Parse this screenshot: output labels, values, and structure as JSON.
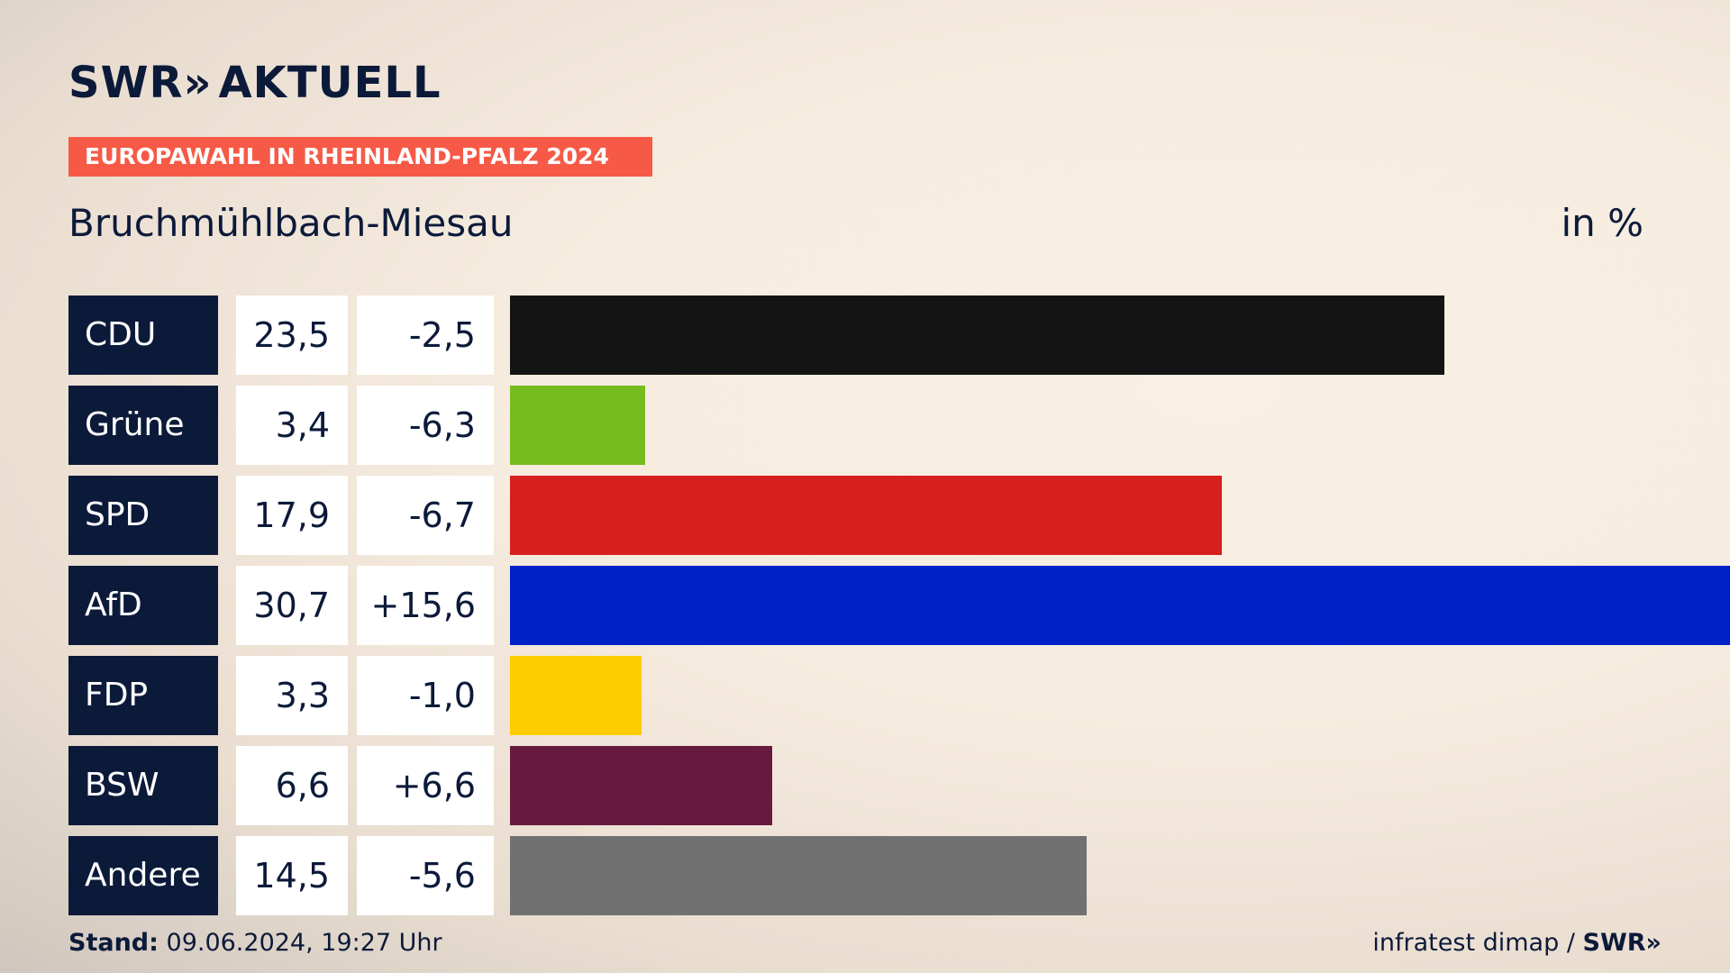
{
  "brand": {
    "logo_text": "SWR",
    "logo_chevrons": "»",
    "logo_suffix": "AKTUELL",
    "color_dark": "#0c1a3a",
    "color_accent": "#f65a47"
  },
  "banner": {
    "text": "EUROPAWAHL IN RHEINLAND-PFALZ 2024"
  },
  "region": "Bruchmühlbach-Miesau",
  "unit_label": "in %",
  "chart_data": {
    "type": "bar",
    "orientation": "horizontal",
    "categories": [
      "CDU",
      "Grüne",
      "SPD",
      "AfD",
      "FDP",
      "BSW",
      "Andere"
    ],
    "values": [
      23.5,
      3.4,
      17.9,
      30.7,
      3.3,
      6.6,
      14.5
    ],
    "value_labels": [
      "23,5",
      "3,4",
      "17,9",
      "30,7",
      "3,3",
      "6,6",
      "14,5"
    ],
    "diff_labels": [
      "-2,5",
      "-6,3",
      "-6,7",
      "+15,6",
      "-1,0",
      "+6,6",
      "-5,6"
    ],
    "colors": [
      "#141414",
      "#77bc1f",
      "#d71f1d",
      "#0021c8",
      "#ffcc00",
      "#661a3f",
      "#717171"
    ],
    "xlim": [
      0,
      30.7
    ]
  },
  "footer": {
    "stand_label": "Stand:",
    "stand_value": "09.06.2024, 19:27 Uhr",
    "source_text": "infratest dimap /",
    "source_brand": "SWR»"
  }
}
